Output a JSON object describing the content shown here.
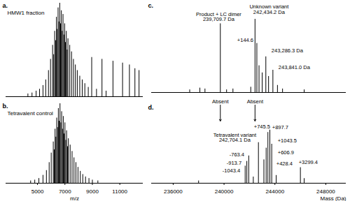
{
  "chart_data": [
    {
      "type": "stem",
      "title": "a.",
      "subtitle": "HMW1 fraction",
      "color": "#000000",
      "x": [
        4300,
        4600,
        4900,
        5150,
        5400,
        5600,
        5800,
        5950,
        6100,
        6180,
        6250,
        6320,
        6380,
        6440,
        6500,
        6560,
        6620,
        6680,
        6740,
        6800,
        6860,
        6920,
        6980,
        7040,
        7100,
        7160,
        7220,
        7350,
        7480,
        7620,
        7760,
        7900,
        8080,
        8260,
        8450,
        8700,
        8950,
        9300,
        9700,
        10000,
        10500,
        11200,
        11700,
        12100,
        12400
      ],
      "values": [
        3,
        4,
        6,
        8,
        12,
        18,
        28,
        40,
        55,
        45,
        70,
        60,
        85,
        72,
        95,
        80,
        100,
        78,
        92,
        70,
        88,
        66,
        78,
        58,
        70,
        50,
        62,
        55,
        48,
        40,
        34,
        28,
        22,
        18,
        14,
        10,
        42,
        8,
        40,
        6,
        38,
        36,
        34,
        30,
        28
      ],
      "xlim": [
        2700,
        12700
      ],
      "ylim": [
        0,
        100
      ],
      "tick_labels": false
    },
    {
      "type": "stem",
      "title": "b.",
      "subtitle": "Tetravalent control",
      "color": "#000000",
      "x": [
        4500,
        4800,
        5100,
        5400,
        5650,
        5850,
        6000,
        6150,
        6220,
        6280,
        6340,
        6400,
        6460,
        6520,
        6580,
        6640,
        6700,
        6760,
        6820,
        6880,
        6940,
        7000,
        7060,
        7120,
        7190,
        7250,
        7380,
        7520,
        7660,
        7800,
        7950,
        8120,
        8300,
        8500,
        8750,
        9000,
        9400
      ],
      "values": [
        3,
        4,
        6,
        10,
        16,
        26,
        38,
        52,
        42,
        68,
        58,
        82,
        70,
        94,
        78,
        100,
        76,
        90,
        68,
        84,
        62,
        76,
        54,
        66,
        46,
        56,
        48,
        40,
        32,
        26,
        20,
        15,
        11,
        8,
        6,
        4,
        3
      ],
      "xlim": [
        2700,
        12700
      ],
      "ylim": [
        0,
        100
      ],
      "xticks": [
        5000,
        7000,
        9000,
        11000
      ],
      "xlabel": "m/z",
      "tick_labels": "x"
    },
    {
      "type": "stem",
      "title": "c.",
      "color": "#000000",
      "x": [
        237300,
        238100,
        238500,
        239709.7,
        240200,
        240700,
        242100,
        242434.2,
        242578.8,
        242750,
        243000,
        243286.3,
        243500,
        243841.0,
        244200,
        244600,
        246300
      ],
      "values": [
        3,
        5,
        4,
        77,
        3,
        4,
        6,
        82,
        55,
        30,
        22,
        40,
        18,
        25,
        8,
        4,
        3
      ],
      "xlim": [
        234300,
        249600
      ],
      "ylim": [
        0,
        100
      ],
      "tick_labels": false,
      "annotations": [
        {
          "x": 239580,
          "y": 80,
          "text": "Product + LC dimer\n239,709.7 Da"
        },
        {
          "x": 243540,
          "y": 88,
          "text": "Unknown variant\n242,434.2 Da"
        },
        {
          "x": 241670,
          "y": 57,
          "text": "+144.6"
        },
        {
          "x": 244970,
          "y": 45,
          "text": "243,286.3 Da"
        },
        {
          "x": 245520,
          "y": 26,
          "text": "243,841.0 Da"
        },
        {
          "x": 239709.7,
          "y": -12,
          "text": "Absent",
          "line_style": "dashed"
        },
        {
          "x": 242434.2,
          "y": -12,
          "text": "Absent",
          "line_style": "dashed"
        }
      ]
    },
    {
      "type": "stem",
      "title": "d.",
      "color": "#000000",
      "x": [
        238000,
        241660.7,
        241790.4,
        241940.7,
        242300,
        242704.1,
        243132.5,
        243311.0,
        243449.6,
        243601.8,
        243747.6,
        244100,
        246003.5,
        246300
      ],
      "values": [
        3,
        22,
        28,
        35,
        8,
        52,
        30,
        45,
        65,
        68,
        50,
        10,
        20,
        6
      ],
      "xlim": [
        234300,
        249600
      ],
      "ylim": [
        0,
        100
      ],
      "xticks": [
        236000,
        240000,
        244000,
        248000
      ],
      "xlabel": "Mass (Da)",
      "tick_labels": "x",
      "annotations": [
        {
          "x": 240845,
          "y": 53,
          "text": "Tetravalent variant\n242,704.1 Da"
        },
        {
          "x": 240570,
          "y": 14,
          "text": "-1043.4"
        },
        {
          "x": 240790,
          "y": 24,
          "text": "-913.7"
        },
        {
          "x": 241010,
          "y": 34,
          "text": "-763.4"
        },
        {
          "x": 244750,
          "y": 23,
          "text": "+428.4"
        },
        {
          "x": 244860,
          "y": 37,
          "text": "+606.9"
        },
        {
          "x": 242990,
          "y": 70,
          "text": "+745.5"
        },
        {
          "x": 244420,
          "y": 69,
          "text": "+897.7"
        },
        {
          "x": 244970,
          "y": 52,
          "text": "+1043.5"
        },
        {
          "x": 246620,
          "y": 25,
          "text": "+3299.4"
        }
      ]
    }
  ]
}
